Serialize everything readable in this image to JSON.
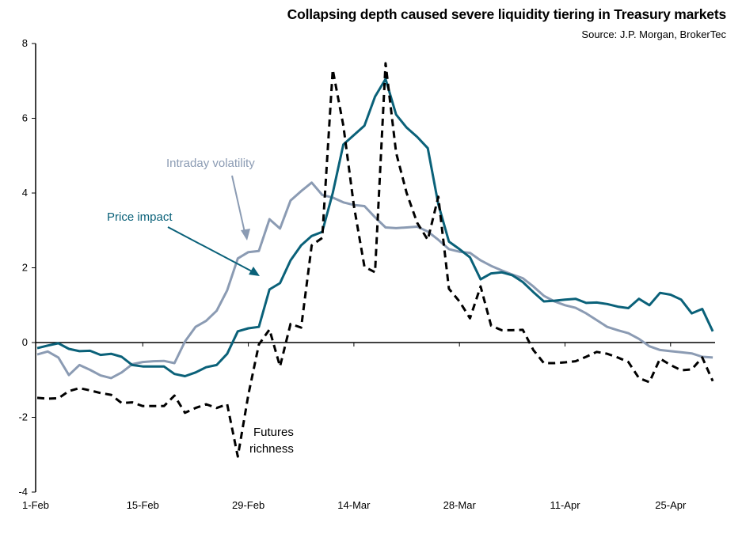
{
  "chart_data": {
    "type": "line",
    "title": "Collapsing depth caused severe liquidity tiering in Treasury markets",
    "subtitle": "Source: J.P. Morgan, BrokerTec",
    "xlabel": "",
    "ylabel": "",
    "ylim": [
      -4,
      8
    ],
    "yticks": [
      "8",
      "6",
      "4",
      "2",
      "0",
      "-2",
      "-4"
    ],
    "xticks": [
      "1-Feb",
      "15-Feb",
      "29-Feb",
      "14-Mar",
      "28-Mar",
      "11-Apr",
      "25-Apr"
    ],
    "grid": false,
    "legend": "none (inline annotations)",
    "categories": [
      "1-Feb",
      "2-Feb",
      "5-Feb",
      "6-Feb",
      "7-Feb",
      "8-Feb",
      "9-Feb",
      "12-Feb",
      "13-Feb",
      "14-Feb",
      "15-Feb",
      "16-Feb",
      "19-Feb",
      "20-Feb",
      "21-Feb",
      "22-Feb",
      "23-Feb",
      "26-Feb",
      "27-Feb",
      "28-Feb",
      "29-Feb",
      "1-Mar",
      "4-Mar",
      "5-Mar",
      "6-Mar",
      "7-Mar",
      "8-Mar",
      "11-Mar",
      "12-Mar",
      "13-Mar",
      "14-Mar",
      "15-Mar",
      "18-Mar",
      "19-Mar",
      "20-Mar",
      "21-Mar",
      "22-Mar",
      "25-Mar",
      "26-Mar",
      "27-Mar",
      "28-Mar",
      "29-Mar",
      "1-Apr",
      "2-Apr",
      "3-Apr",
      "4-Apr",
      "5-Apr",
      "8-Apr",
      "9-Apr",
      "10-Apr",
      "11-Apr",
      "12-Apr",
      "15-Apr",
      "16-Apr",
      "17-Apr",
      "18-Apr",
      "19-Apr",
      "22-Apr",
      "23-Apr",
      "24-Apr",
      "25-Apr",
      "26-Apr",
      "29-Apr",
      "30-Apr",
      "1-May"
    ],
    "series": [
      {
        "name": "Intraday volatility",
        "color": "#8B9BB3",
        "style": "solid",
        "values": [
          -0.32,
          -0.24,
          -0.4,
          -0.87,
          -0.6,
          -0.73,
          -0.88,
          -0.95,
          -0.8,
          -0.58,
          -0.52,
          -0.5,
          -0.49,
          -0.55,
          0.03,
          0.42,
          0.58,
          0.85,
          1.4,
          2.25,
          2.42,
          2.45,
          3.3,
          3.05,
          3.8,
          4.05,
          4.28,
          3.95,
          3.88,
          3.75,
          3.68,
          3.65,
          3.35,
          3.08,
          3.06,
          3.08,
          3.1,
          2.97,
          2.75,
          2.5,
          2.43,
          2.4,
          2.2,
          2.05,
          1.93,
          1.82,
          1.72,
          1.5,
          1.25,
          1.1,
          1.0,
          0.93,
          0.78,
          0.6,
          0.42,
          0.33,
          0.25,
          0.1,
          -0.1,
          -0.2,
          -0.23,
          -0.26,
          -0.29,
          -0.38,
          -0.4
        ]
      },
      {
        "name": "Price impact",
        "color": "#0A6179",
        "style": "solid",
        "values": [
          -0.15,
          -0.08,
          -0.02,
          -0.17,
          -0.23,
          -0.22,
          -0.33,
          -0.3,
          -0.38,
          -0.6,
          -0.64,
          -0.64,
          -0.64,
          -0.84,
          -0.9,
          -0.8,
          -0.66,
          -0.6,
          -0.3,
          0.3,
          0.38,
          0.42,
          1.42,
          1.59,
          2.2,
          2.6,
          2.85,
          2.96,
          4.0,
          5.3,
          5.55,
          5.8,
          6.58,
          7.05,
          6.1,
          5.75,
          5.5,
          5.2,
          3.7,
          2.7,
          2.5,
          2.28,
          1.69,
          1.85,
          1.88,
          1.8,
          1.62,
          1.35,
          1.1,
          1.12,
          1.15,
          1.17,
          1.06,
          1.07,
          1.03,
          0.96,
          0.92,
          1.17,
          1.0,
          1.33,
          1.28,
          1.15,
          0.78,
          0.9,
          0.3
        ]
      },
      {
        "name": "Futures richness",
        "color": "#000000",
        "style": "dashed",
        "values": [
          -1.48,
          -1.5,
          -1.49,
          -1.3,
          -1.22,
          -1.28,
          -1.35,
          -1.4,
          -1.62,
          -1.6,
          -1.7,
          -1.7,
          -1.7,
          -1.42,
          -1.88,
          -1.75,
          -1.65,
          -1.75,
          -1.65,
          -3.05,
          -1.4,
          -0.05,
          0.35,
          -0.64,
          0.5,
          0.4,
          2.6,
          2.8,
          7.3,
          5.8,
          3.66,
          2.03,
          1.88,
          7.47,
          5.08,
          4.0,
          3.2,
          2.75,
          3.9,
          1.44,
          1.1,
          0.65,
          1.5,
          0.45,
          0.33,
          0.33,
          0.34,
          -0.2,
          -0.55,
          -0.55,
          -0.53,
          -0.5,
          -0.38,
          -0.25,
          -0.3,
          -0.4,
          -0.52,
          -0.95,
          -1.06,
          -0.43,
          -0.6,
          -0.74,
          -0.72,
          -0.4,
          -1.03
        ]
      }
    ],
    "annotations": {
      "intraday_volatility": "Intraday volatility",
      "price_impact": "Price impact",
      "futures_richness_line1": "Futures",
      "futures_richness_line2": "richness"
    }
  }
}
